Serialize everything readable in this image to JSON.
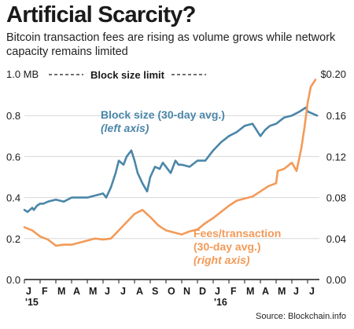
{
  "title": "Artificial Scarcity?",
  "subtitle": "Bitcoin transaction fees are rising as volume grows while network capacity remains limited",
  "source": "Source: Blockchain.info",
  "colors": {
    "block_size": "#4a86a9",
    "fees": "#f39a58",
    "grid": "#d7d7d7",
    "text": "#1a1a1a"
  },
  "chart_data": {
    "type": "line",
    "x_ticks": [
      "J",
      "F",
      "M",
      "A",
      "M",
      "J",
      "J",
      "A",
      "S",
      "O",
      "N",
      "D",
      "J",
      "F",
      "M",
      "A",
      "M",
      "J",
      "J"
    ],
    "x_year_labels": {
      "0": "'15",
      "12": "'16"
    },
    "y_left": {
      "ticks": [
        "0.0",
        "0.2",
        "0.4",
        "0.6",
        "0.8",
        "1.0 MB"
      ],
      "ylim": [
        0,
        1.0
      ]
    },
    "y_right": {
      "ticks": [
        "0.00",
        "0.04",
        "0.08",
        "0.12",
        "0.16",
        "$0.20"
      ],
      "ylim": [
        0,
        0.2
      ]
    },
    "limit_label": "Block size limit",
    "series": [
      {
        "name": "Block size (30-day avg.)",
        "name_line1": "Block size (30-day avg.)",
        "name_line2": "(left axis)",
        "axis": "left",
        "x": [
          0,
          0.2,
          0.35,
          0.5,
          0.6,
          0.8,
          1.0,
          1.2,
          1.5,
          2.0,
          2.5,
          3.0,
          3.5,
          4.0,
          4.5,
          5.0,
          5.2,
          5.5,
          5.8,
          6.0,
          6.3,
          6.5,
          6.8,
          7.0,
          7.2,
          7.5,
          7.8,
          8.0,
          8.3,
          8.6,
          8.8,
          9.0,
          9.3,
          9.6,
          9.8,
          10.0,
          10.5,
          11.0,
          11.5,
          12.0,
          12.5,
          13.0,
          13.5,
          14.0,
          14.5,
          15.0,
          15.3,
          15.6,
          16.0,
          16.5,
          17.0,
          17.5,
          17.7,
          17.9,
          18.0,
          18.3,
          18.6
        ],
        "values": [
          0.34,
          0.33,
          0.34,
          0.35,
          0.34,
          0.36,
          0.37,
          0.37,
          0.38,
          0.39,
          0.38,
          0.4,
          0.4,
          0.4,
          0.41,
          0.42,
          0.4,
          0.45,
          0.52,
          0.58,
          0.56,
          0.6,
          0.63,
          0.58,
          0.52,
          0.47,
          0.43,
          0.5,
          0.55,
          0.54,
          0.57,
          0.55,
          0.52,
          0.58,
          0.56,
          0.56,
          0.55,
          0.58,
          0.58,
          0.63,
          0.67,
          0.7,
          0.72,
          0.75,
          0.76,
          0.7,
          0.73,
          0.75,
          0.76,
          0.79,
          0.8,
          0.82,
          0.83,
          0.84,
          0.82,
          0.81,
          0.8
        ]
      },
      {
        "name": "Fees/transaction (30-day avg.)",
        "name_line1": "Fees/transaction",
        "name_line2": "(30-day avg.)",
        "name_line3": "(right axis)",
        "axis": "right",
        "x": [
          0,
          0.5,
          1.0,
          1.5,
          2.0,
          2.5,
          3.0,
          3.5,
          4.0,
          4.5,
          5.0,
          5.5,
          6.0,
          6.5,
          7.0,
          7.5,
          8.0,
          8.5,
          9.0,
          9.5,
          10.0,
          10.5,
          11.0,
          11.5,
          12.0,
          12.5,
          13.0,
          13.5,
          14.0,
          14.5,
          15.0,
          15.5,
          16.0,
          16.1,
          16.5,
          17.0,
          17.3,
          17.6,
          17.8,
          18.0,
          18.2,
          18.5
        ],
        "values": [
          0.051,
          0.048,
          0.042,
          0.039,
          0.033,
          0.034,
          0.034,
          0.036,
          0.038,
          0.04,
          0.039,
          0.04,
          0.048,
          0.056,
          0.064,
          0.068,
          0.061,
          0.053,
          0.048,
          0.046,
          0.044,
          0.047,
          0.049,
          0.055,
          0.06,
          0.066,
          0.072,
          0.077,
          0.079,
          0.081,
          0.086,
          0.091,
          0.094,
          0.106,
          0.108,
          0.114,
          0.106,
          0.128,
          0.148,
          0.172,
          0.188,
          0.195
        ]
      }
    ],
    "legend_placement": "inline labels",
    "grid": true
  }
}
